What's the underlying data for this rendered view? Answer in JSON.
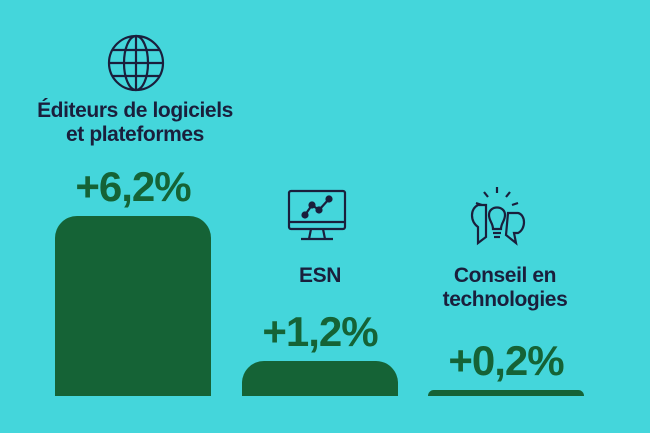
{
  "colors": {
    "background": "#44d6db",
    "bar": "#156336",
    "label_text": "#1a1f3c",
    "value_text": "#156336"
  },
  "chart_data": {
    "type": "bar",
    "title": "",
    "xlabel": "",
    "ylabel": "",
    "unit": "%",
    "categories": [
      "Éditeurs de logiciels et plateformes",
      "ESN",
      "Conseil en technologies"
    ],
    "label_lines": [
      [
        "Éditeurs de logiciels",
        "et plateformes"
      ],
      [
        "ESN"
      ],
      [
        "Conseil en",
        "technologies"
      ]
    ],
    "values": [
      6.2,
      1.2,
      0.2
    ],
    "value_labels": [
      "+6,2%",
      "+1,2%",
      "+0,2%"
    ],
    "icons": [
      "globe-icon",
      "monitor-chart-icon",
      "lightbulb-chat-icon"
    ],
    "ylim": [
      0,
      6.2
    ],
    "grid": false,
    "legend": "none"
  }
}
